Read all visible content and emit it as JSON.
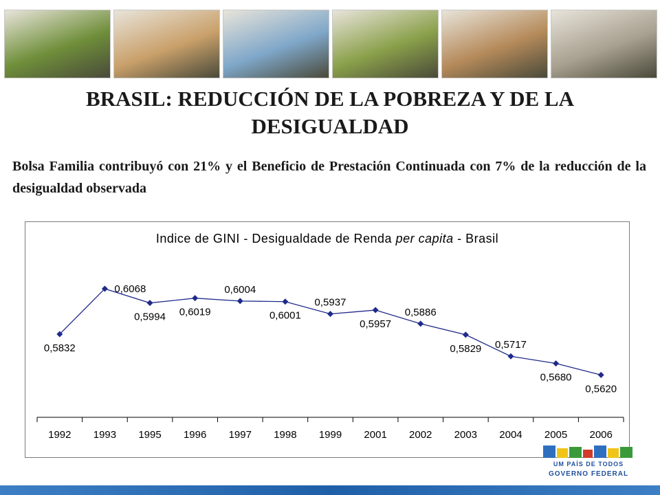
{
  "slide": {
    "title": "BRASIL: REDUCCIÓN DE LA POBREZA Y DE LA DESIGUALDAD",
    "subtitle": "Bolsa Familia contribuyó con 21% y el Beneficio de Prestación Continuada con 7% de la reducción de la desigualdad observada",
    "logo_line1": "UM PAÍS DE TODOS",
    "logo_line2": "GOVERNO FEDERAL"
  },
  "photos": [
    {
      "name": "farmer-field-photo",
      "color": "#6f8f3a"
    },
    {
      "name": "children-reading-photo",
      "color": "#c9a06a"
    },
    {
      "name": "water-tap-photo",
      "color": "#7fa7c9"
    },
    {
      "name": "woman-field-photo",
      "color": "#8aa04a"
    },
    {
      "name": "classroom-children-photo",
      "color": "#b58a5a"
    },
    {
      "name": "man-cow-photo",
      "color": "#a8a090"
    }
  ],
  "chart_data": {
    "type": "line",
    "title_parts": [
      "Indice de GINI - Desigualdade de Renda ",
      "per capita",
      " - Brasil"
    ],
    "categories": [
      "1992",
      "1993",
      "1995",
      "1996",
      "1997",
      "1998",
      "1999",
      "2001",
      "2002",
      "2003",
      "2004",
      "2005",
      "2006"
    ],
    "values": [
      0.5832,
      0.6068,
      0.5994,
      0.6019,
      0.6004,
      0.6001,
      0.5937,
      0.5957,
      0.5886,
      0.5829,
      0.5717,
      0.568,
      0.562
    ],
    "value_labels": [
      "0,5832",
      "0,6068",
      "0,5994",
      "0,6019",
      "0,6004",
      "0,6001",
      "0,5937",
      "0,5957",
      "0,5886",
      "0,5829",
      "0,5717",
      "0,5680",
      "0,5620"
    ],
    "label_positions": [
      "below",
      "right",
      "below",
      "below",
      "above",
      "below",
      "above",
      "below",
      "above",
      "below",
      "above",
      "below",
      "below"
    ],
    "ylim": [
      0.54,
      0.62
    ],
    "grid": false,
    "legend": "none",
    "colors": {
      "line": "#1f2a8a",
      "marker": "#1f2a8a"
    }
  }
}
